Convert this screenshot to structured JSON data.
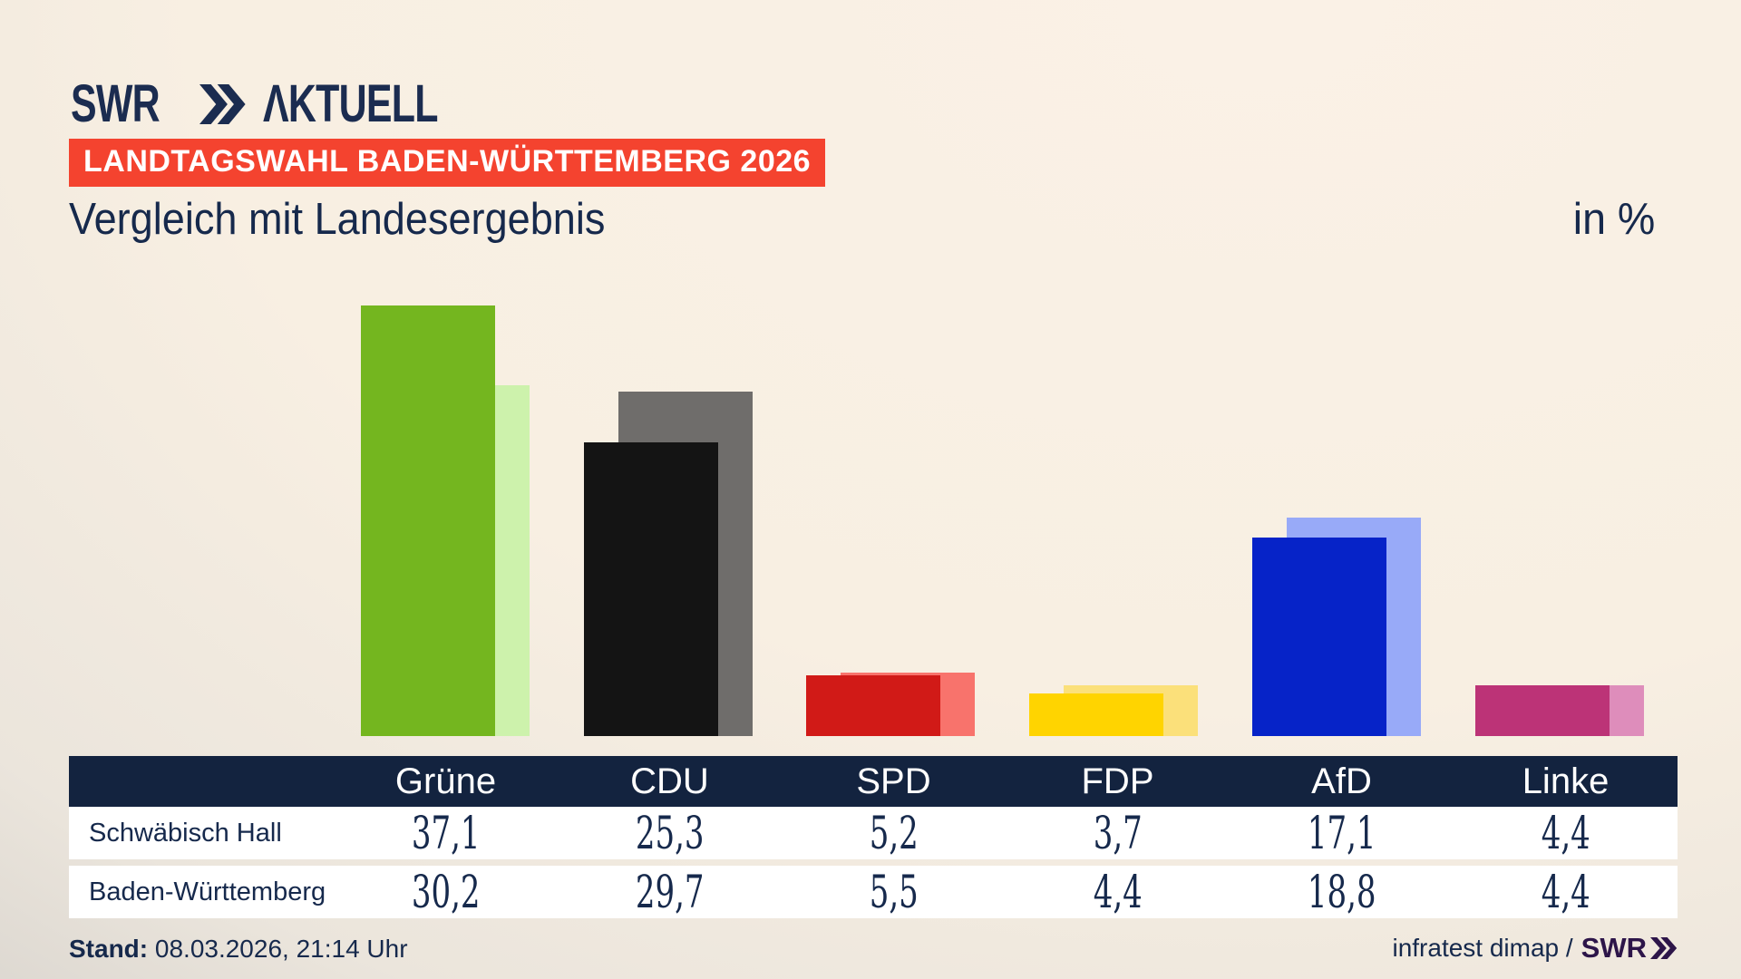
{
  "brand": {
    "logo_main": "SWR",
    "logo_suffix": "ΛKTUELL"
  },
  "badge": {
    "label": "LANDTAGSWAHL BADEN-WÜRTTEMBERG 2026"
  },
  "title": "Vergleich mit Landesergebnis",
  "unit_label": "in %",
  "chart_data": {
    "type": "bar",
    "title": "Vergleich mit Landesergebnis",
    "unit": "%",
    "categories": [
      "Grüne",
      "CDU",
      "SPD",
      "FDP",
      "AfD",
      "Linke"
    ],
    "category_slugs": [
      "gruene",
      "cdu",
      "spd",
      "fdp",
      "afd",
      "linke"
    ],
    "series": [
      {
        "name": "Schwäbisch Hall",
        "role": "front",
        "values": [
          37.1,
          25.3,
          5.2,
          3.7,
          17.1,
          4.4
        ],
        "colors": [
          "#74b61f",
          "#141414",
          "#d11a17",
          "#ffd400",
          "#0623c8",
          "#bc3377"
        ]
      },
      {
        "name": "Baden-Württemberg",
        "role": "back",
        "values": [
          30.2,
          29.7,
          5.5,
          4.4,
          18.8,
          4.4
        ],
        "colors": [
          "#cdf2ac",
          "#6f6d6b",
          "#f8736c",
          "#fbe07a",
          "#98aaf8",
          "#de8dbb"
        ]
      }
    ],
    "ylim": [
      0,
      40
    ],
    "axes_visible": false,
    "grid": false,
    "legend": "table-below"
  },
  "table": {
    "rows": [
      {
        "label": "Schwäbisch Hall",
        "values": [
          "37,1",
          "25,3",
          "5,2",
          "3,7",
          "17,1",
          "4,4"
        ]
      },
      {
        "label": "Baden-Württemberg",
        "values": [
          "30,2",
          "29,7",
          "5,5",
          "4,4",
          "18,8",
          "4,4"
        ]
      }
    ]
  },
  "footer": {
    "stand_label": "Stand:",
    "stand_value": " 08.03.2026, 21:14 Uhr",
    "source_text": "infratest dimap /",
    "source_brand": "SWR"
  },
  "colors": {
    "text_navy": "#16294c",
    "badge_red": "#f4432f",
    "table_header_navy": "#13233f",
    "brand_purple": "#2d1549",
    "background_cream": "#f8efe2"
  }
}
